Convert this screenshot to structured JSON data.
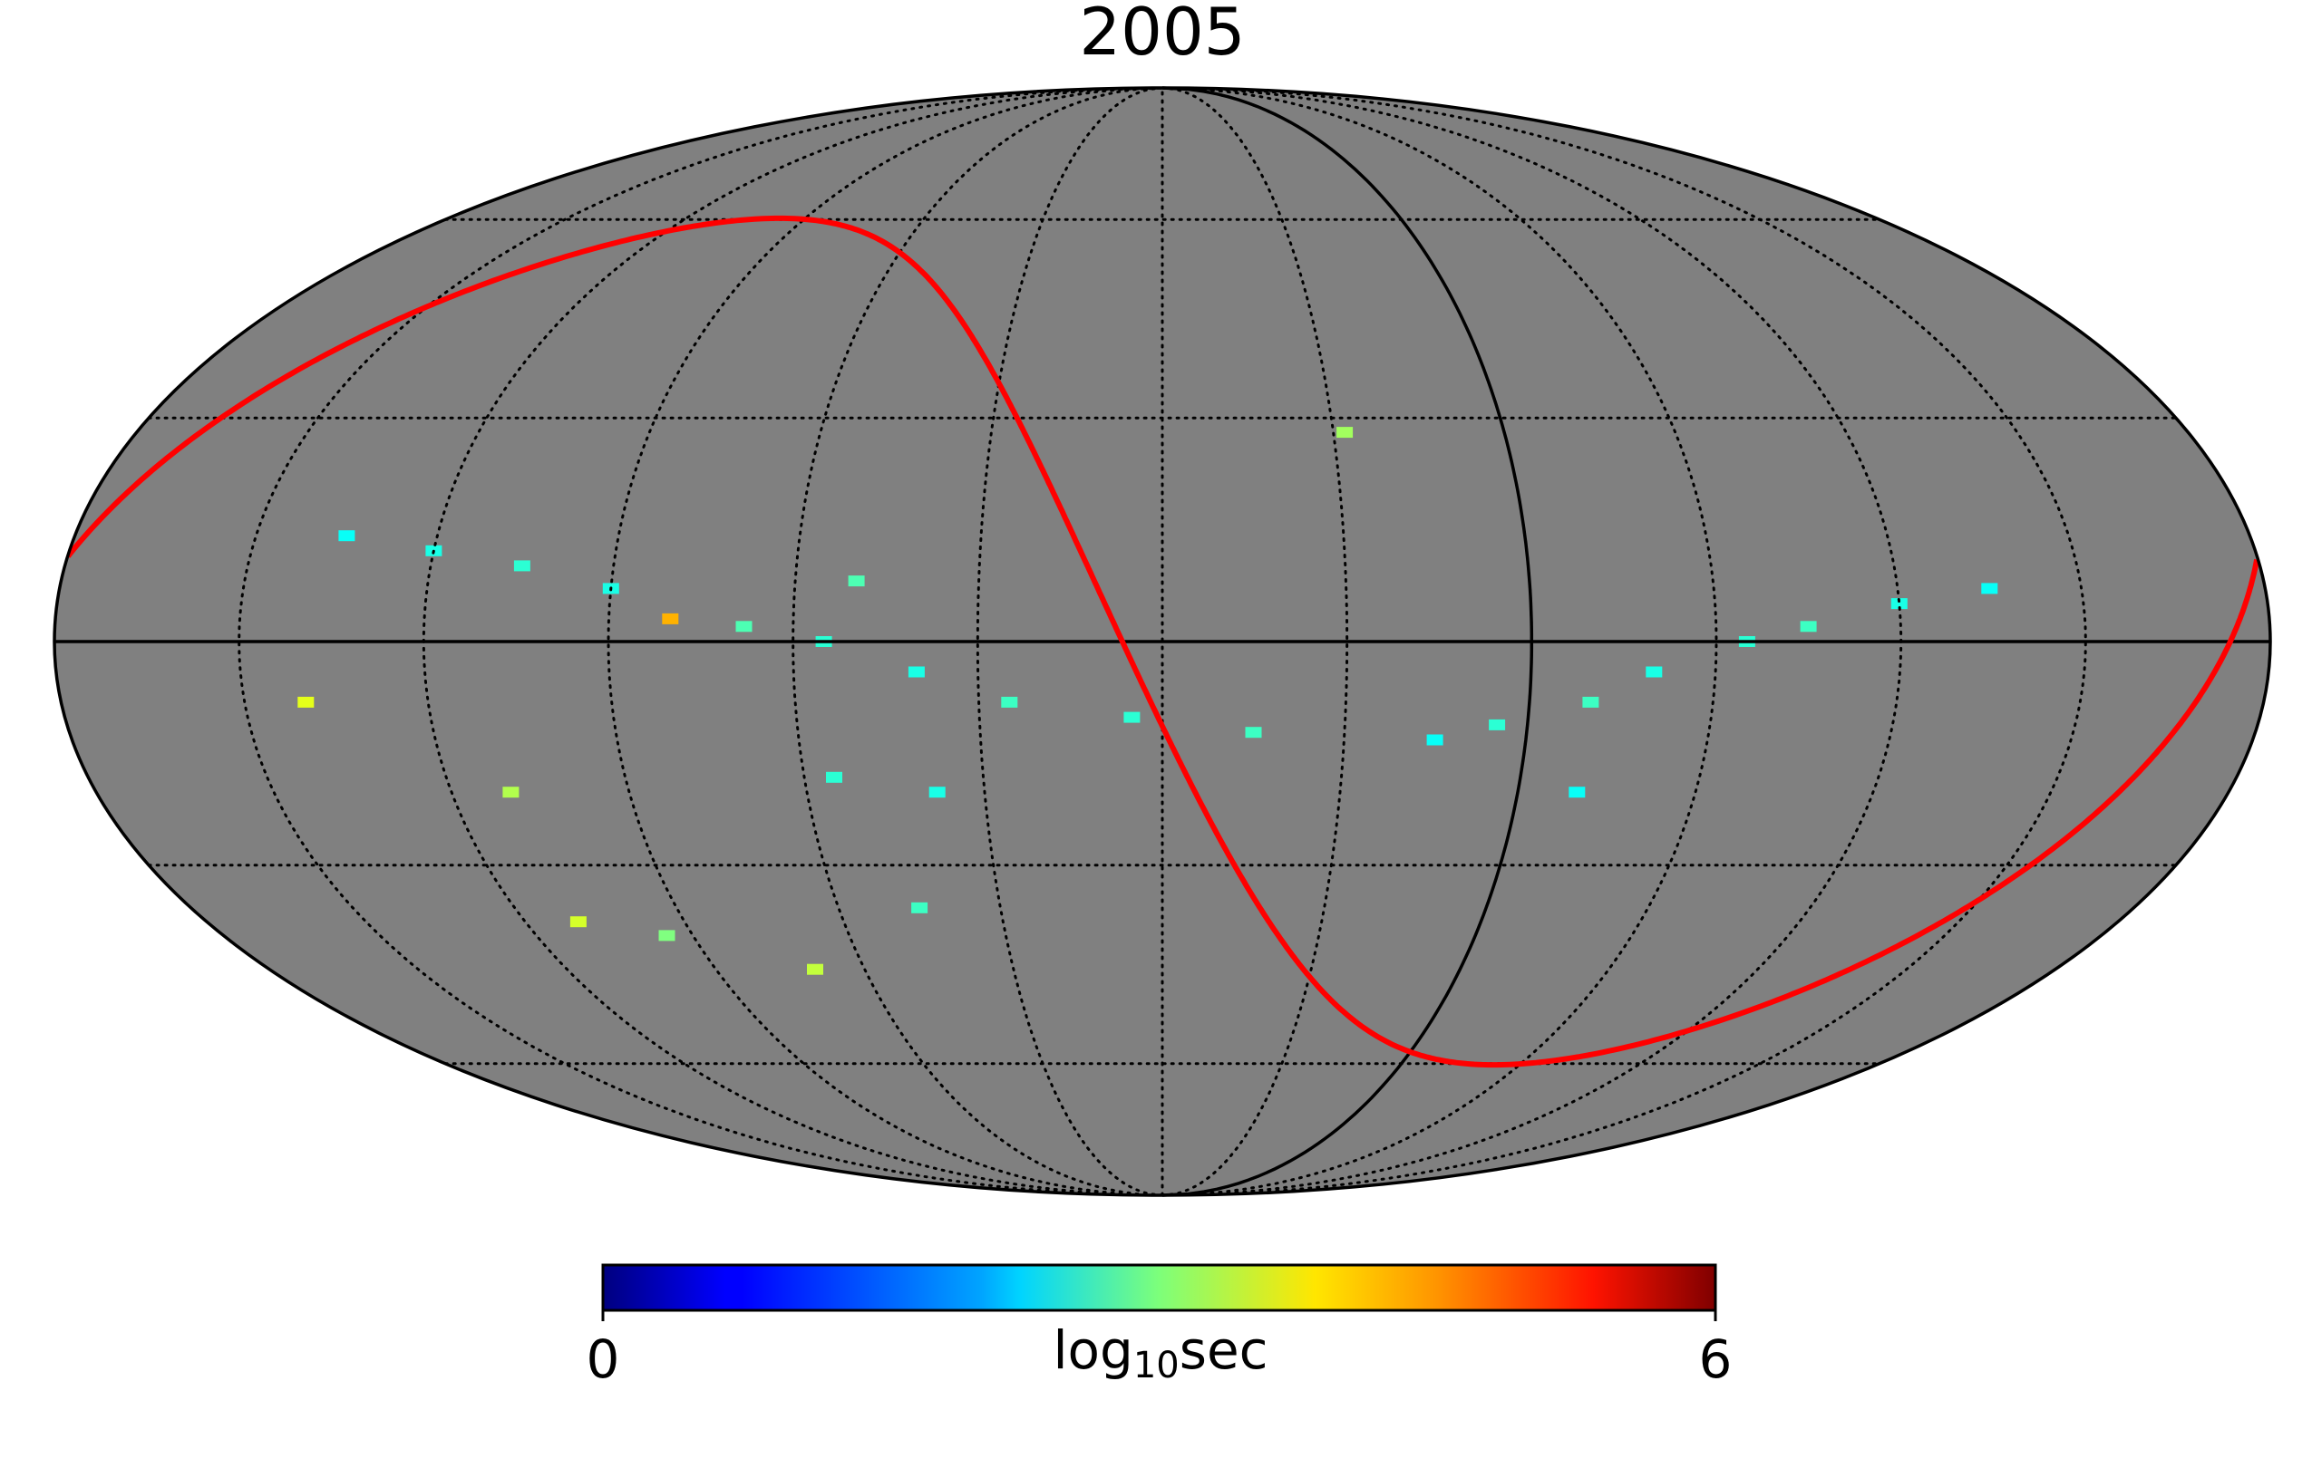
{
  "title": "2005",
  "projection": "mollweide",
  "background_color": "#808080",
  "graticule": {
    "style": "dotted",
    "color": "#000000"
  },
  "reference_lines": [
    {
      "name": "galactic-equator",
      "color": "#000000"
    },
    {
      "name": "meridian-arc",
      "color": "#000000"
    },
    {
      "name": "ecliptic-curve",
      "color": "#ff0000"
    }
  ],
  "colorbar": {
    "colormap": "jet",
    "min_label": "0",
    "max_label": "6",
    "label_main": "log",
    "label_sub": "10",
    "label_unit": "sec",
    "range": [
      0,
      6
    ]
  },
  "chart_data": {
    "type": "heatmap",
    "title": "2005",
    "colorbar_label": "log10sec",
    "range": [
      0,
      6
    ],
    "patches": [
      {
        "lon": -135,
        "lat": 7,
        "value": 2.3
      },
      {
        "lon": -120,
        "lat": 5,
        "value": 2.4
      },
      {
        "lon": -105,
        "lat": 2,
        "value": 2.6
      },
      {
        "lon": -95,
        "lat": 0,
        "value": 2.5
      },
      {
        "lon": -80,
        "lat": -4,
        "value": 2.4
      },
      {
        "lon": -70,
        "lat": -8,
        "value": 2.6
      },
      {
        "lon": -55,
        "lat": -11,
        "value": 2.5
      },
      {
        "lon": -45,
        "lat": -13,
        "value": 2.3
      },
      {
        "lon": -15,
        "lat": -12,
        "value": 2.6
      },
      {
        "lon": 5,
        "lat": -10,
        "value": 2.5
      },
      {
        "lon": 25,
        "lat": -8,
        "value": 2.6
      },
      {
        "lon": 40,
        "lat": -4,
        "value": 2.4
      },
      {
        "lon": 55,
        "lat": 0,
        "value": 2.5
      },
      {
        "lon": 68,
        "lat": 2,
        "value": 2.7
      },
      {
        "lon": 90,
        "lat": 7,
        "value": 2.4
      },
      {
        "lon": 105,
        "lat": 10,
        "value": 2.5
      },
      {
        "lon": 120,
        "lat": 12,
        "value": 2.4
      },
      {
        "lon": 135,
        "lat": 14,
        "value": 2.3
      },
      {
        "lon": 70,
        "lat": -45,
        "value": 3.4
      },
      {
        "lon": 95,
        "lat": -40,
        "value": 3.0
      },
      {
        "lon": 110,
        "lat": -38,
        "value": 3.5
      },
      {
        "lon": 45,
        "lat": -36,
        "value": 2.6
      },
      {
        "lon": 55,
        "lat": -18,
        "value": 2.5
      },
      {
        "lon": 50,
        "lat": 8,
        "value": 2.7
      },
      {
        "lon": 38,
        "lat": -20,
        "value": 2.4
      },
      {
        "lon": 110,
        "lat": -20,
        "value": 3.3
      },
      {
        "lon": -70,
        "lat": -20,
        "value": 2.3
      },
      {
        "lon": -32,
        "lat": 28,
        "value": 3.2
      },
      {
        "lon": 80,
        "lat": 3,
        "value": 4.2
      },
      {
        "lon": 140,
        "lat": -8,
        "value": 3.6
      }
    ]
  }
}
